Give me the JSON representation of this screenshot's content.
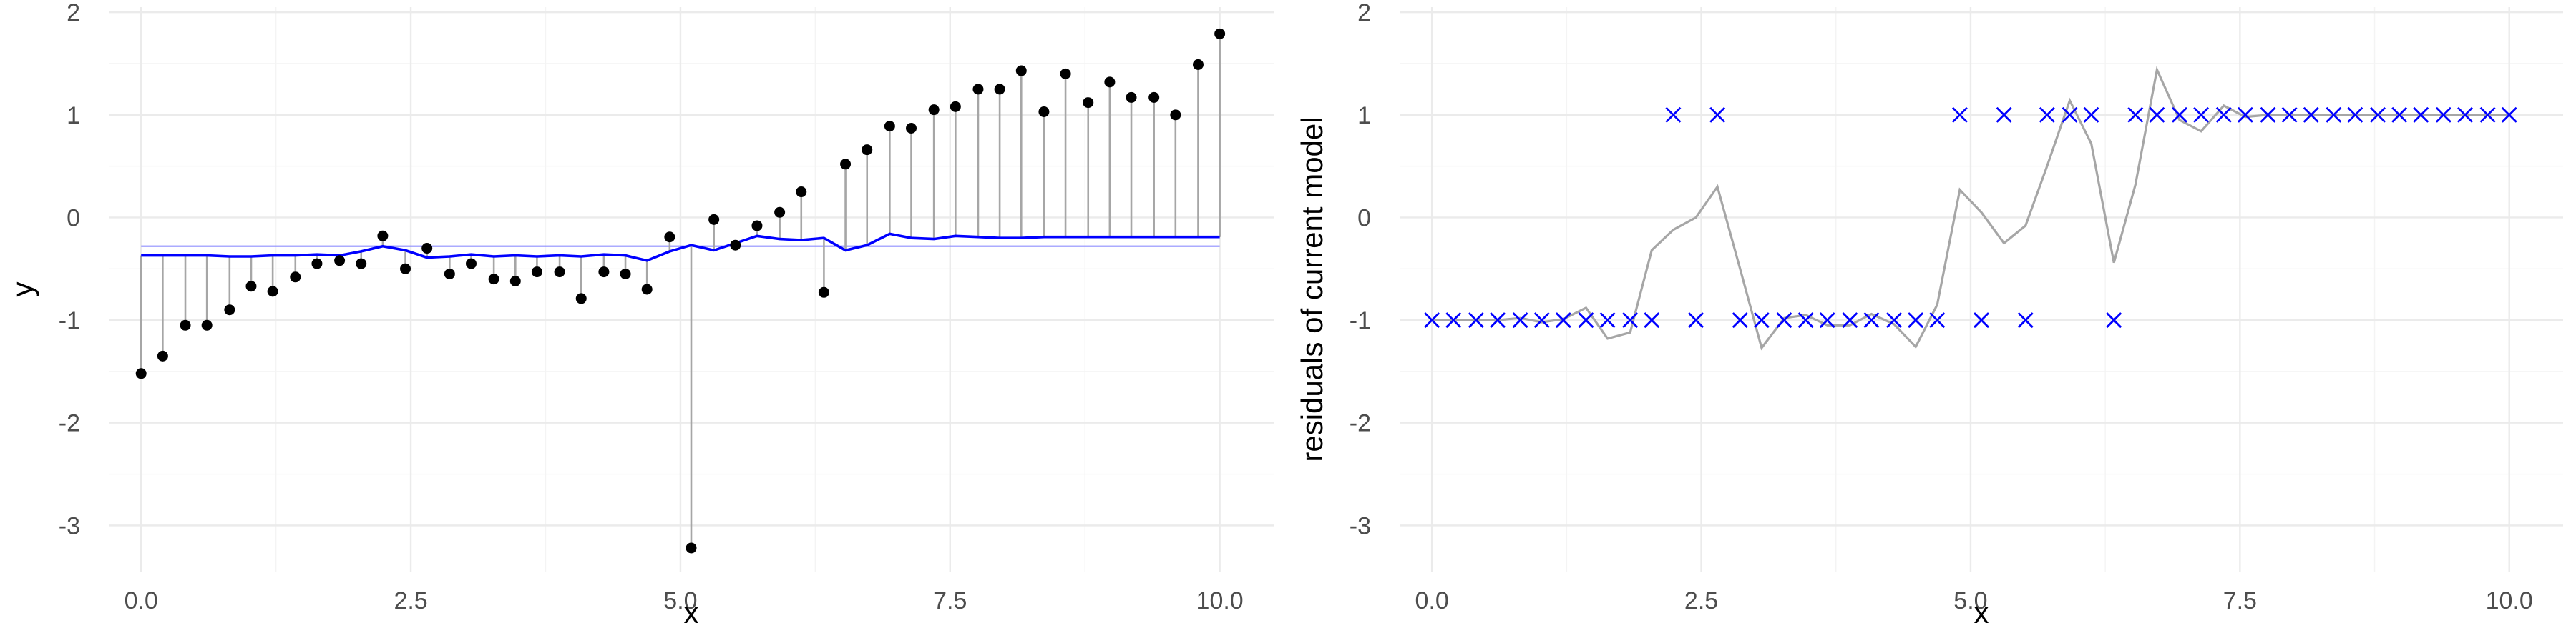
{
  "chart_data": [
    {
      "type": "scatter",
      "description_free": true,
      "xlabel": "x",
      "ylabel": "y",
      "xlim": [
        -0.3,
        10.5
      ],
      "ylim": [
        -3.45,
        2.05
      ],
      "x_ticks": [
        0,
        2.5,
        5,
        7.5,
        10
      ],
      "x_tick_labels": [
        "0.0",
        "2.5",
        "5.0",
        "7.5",
        "10.0"
      ],
      "y_ticks": [
        -3,
        -2,
        -1,
        0,
        1,
        2
      ],
      "y_tick_labels": [
        "-3",
        "-2",
        "-1",
        "0",
        "1",
        "2"
      ],
      "grid": true,
      "points": {
        "x": [
          0.0,
          0.2,
          0.41,
          0.61,
          0.82,
          1.02,
          1.22,
          1.43,
          1.63,
          1.84,
          2.04,
          2.24,
          2.45,
          2.65,
          2.86,
          3.06,
          3.27,
          3.47,
          3.67,
          3.88,
          4.08,
          4.29,
          4.49,
          4.69,
          4.9,
          5.1,
          5.31,
          5.51,
          5.71,
          5.92,
          6.12,
          6.33,
          6.53,
          6.73,
          6.94,
          7.14,
          7.35,
          7.55,
          7.76,
          7.96,
          8.16,
          8.37,
          8.57,
          8.78,
          8.98,
          9.18,
          9.39,
          9.59,
          9.8,
          10.0
        ],
        "y": [
          -1.52,
          -1.35,
          -1.05,
          -1.05,
          -0.9,
          -0.67,
          -0.72,
          -0.58,
          -0.45,
          -0.42,
          -0.45,
          -0.18,
          -0.5,
          -0.3,
          -0.55,
          -0.45,
          -0.6,
          -0.62,
          -0.53,
          -0.53,
          -0.79,
          -0.53,
          -0.55,
          -0.7,
          -0.19,
          -3.22,
          -0.02,
          -0.27,
          -0.08,
          0.05,
          0.25,
          -0.73,
          0.52,
          0.66,
          0.89,
          0.87,
          1.05,
          1.08,
          1.25,
          1.25,
          1.43,
          1.03,
          1.4,
          1.12,
          1.32,
          1.17,
          1.17,
          1.0,
          1.49,
          1.79
        ]
      },
      "fitted_line": {
        "y": [
          -0.37,
          -0.37,
          -0.37,
          -0.37,
          -0.38,
          -0.38,
          -0.37,
          -0.37,
          -0.36,
          -0.37,
          -0.33,
          -0.28,
          -0.32,
          -0.39,
          -0.38,
          -0.36,
          -0.38,
          -0.37,
          -0.38,
          -0.37,
          -0.38,
          -0.36,
          -0.37,
          -0.42,
          -0.33,
          -0.27,
          -0.32,
          -0.25,
          -0.18,
          -0.21,
          -0.22,
          -0.2,
          -0.32,
          -0.27,
          -0.16,
          -0.2,
          -0.21,
          -0.18,
          -0.19,
          -0.2,
          -0.2,
          -0.19,
          -0.19,
          -0.19,
          -0.19,
          -0.19,
          -0.19,
          -0.19,
          -0.19,
          -0.19
        ]
      },
      "reference_line": {
        "y": -0.28
      },
      "colors": {
        "points": "#000000",
        "segments": "#a6a6a6",
        "fit": "#0000ff",
        "reference": "#8f8fff"
      }
    },
    {
      "type": "scatter",
      "xlabel": "x",
      "ylabel": "residuals of current model",
      "xlim": [
        -0.3,
        10.5
      ],
      "ylim": [
        -3.45,
        2.05
      ],
      "x_ticks": [
        0,
        2.5,
        5,
        7.5,
        10
      ],
      "x_tick_labels": [
        "0.0",
        "2.5",
        "5.0",
        "7.5",
        "10.0"
      ],
      "y_ticks": [
        -3,
        -2,
        -1,
        0,
        1,
        2
      ],
      "y_tick_labels": [
        "-3",
        "-2",
        "-1",
        "0",
        "1",
        "2"
      ],
      "grid": true,
      "marker": "x",
      "points": {
        "x": [
          0.0,
          0.2,
          0.41,
          0.61,
          0.82,
          1.02,
          1.22,
          1.43,
          1.63,
          1.84,
          2.04,
          2.24,
          2.45,
          2.65,
          2.86,
          3.06,
          3.27,
          3.47,
          3.67,
          3.88,
          4.08,
          4.29,
          4.49,
          4.69,
          4.9,
          5.1,
          5.31,
          5.51,
          5.71,
          5.92,
          6.12,
          6.33,
          6.53,
          6.73,
          6.94,
          7.14,
          7.35,
          7.55,
          7.76,
          7.96,
          8.16,
          8.37,
          8.57,
          8.78,
          8.98,
          9.18,
          9.39,
          9.59,
          9.8,
          10.0
        ],
        "y": [
          -1,
          -1,
          -1,
          -1,
          -1,
          -1,
          -1,
          -1,
          -1,
          -1,
          -1,
          1,
          -1,
          1,
          -1,
          -1,
          -1,
          -1,
          -1,
          -1,
          -1,
          -1,
          -1,
          -1,
          1,
          -1,
          1,
          -1,
          1,
          1,
          1,
          -1,
          1,
          1,
          1,
          1,
          1,
          1,
          1,
          1,
          1,
          1,
          1,
          1,
          1,
          1,
          1,
          1,
          1,
          1
        ]
      },
      "line": {
        "y": [
          -1.0,
          -1.0,
          -1.0,
          -1.0,
          -0.98,
          -1.02,
          -0.99,
          -0.88,
          -1.18,
          -1.12,
          -0.32,
          -0.12,
          0.0,
          0.3,
          -0.5,
          -1.27,
          -0.98,
          -0.95,
          -1.05,
          -1.05,
          -0.94,
          -1.04,
          -1.26,
          -0.85,
          0.27,
          0.05,
          -0.25,
          -0.08,
          0.5,
          1.14,
          0.72,
          -0.44,
          0.32,
          1.44,
          0.95,
          0.84,
          1.09,
          0.98,
          1.0,
          1.0,
          1.0,
          1.0,
          1.0,
          1.0,
          1.0,
          1.0,
          1.0,
          1.0,
          1.0,
          1.0
        ]
      },
      "colors": {
        "markers": "#0000ff",
        "line": "#a6a6a6"
      }
    }
  ]
}
